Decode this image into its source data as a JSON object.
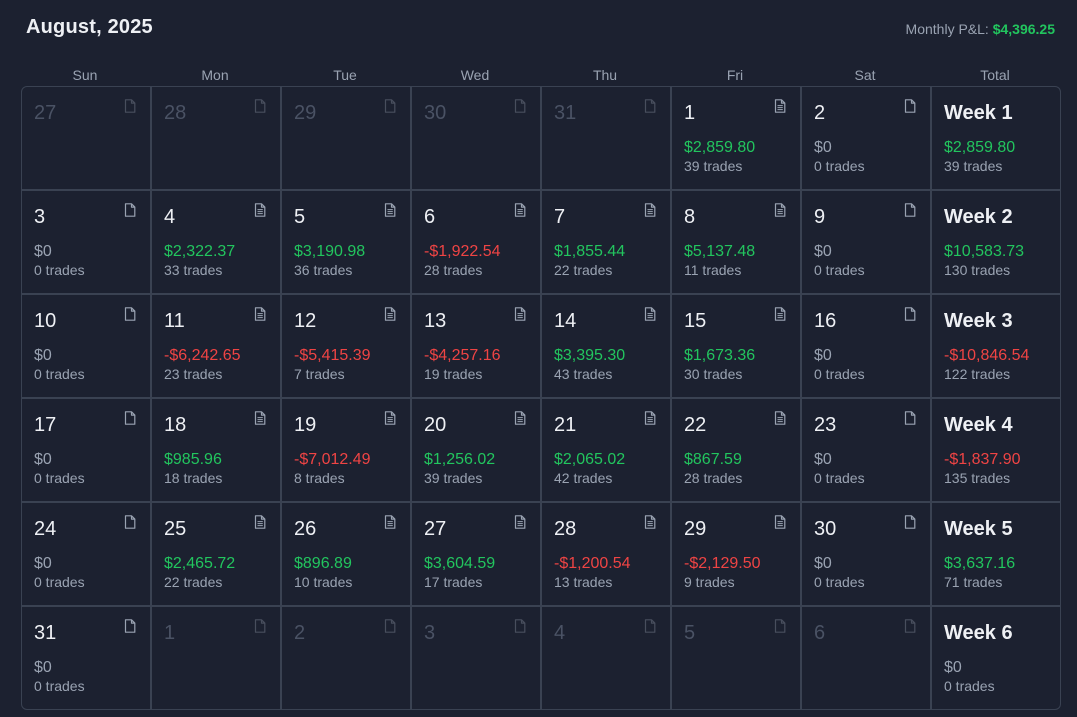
{
  "header": {
    "title": "August, 2025",
    "monthly_label": "Monthly P&L:",
    "monthly_value": "$4,396.25"
  },
  "days_of_week": [
    "Sun",
    "Mon",
    "Tue",
    "Wed",
    "Thu",
    "Fri",
    "Sat",
    "Total"
  ],
  "colors": {
    "positive": "#22c55e",
    "negative": "#ef4444",
    "neutral": "#9aa3b2"
  },
  "weeks": [
    {
      "days": [
        {
          "day": "27",
          "current": false
        },
        {
          "day": "28",
          "current": false
        },
        {
          "day": "29",
          "current": false
        },
        {
          "day": "30",
          "current": false
        },
        {
          "day": "31",
          "current": false
        },
        {
          "day": "1",
          "current": true,
          "pnl": "$2,859.80",
          "trades": "39 trades",
          "sign": "pos",
          "has_notes": true
        },
        {
          "day": "2",
          "current": true,
          "pnl": "$0",
          "trades": "0 trades",
          "sign": "zero",
          "has_notes": false
        }
      ],
      "total": {
        "label": "Week 1",
        "pnl": "$2,859.80",
        "trades": "39 trades",
        "sign": "pos"
      }
    },
    {
      "days": [
        {
          "day": "3",
          "current": true,
          "pnl": "$0",
          "trades": "0 trades",
          "sign": "zero",
          "has_notes": false
        },
        {
          "day": "4",
          "current": true,
          "pnl": "$2,322.37",
          "trades": "33 trades",
          "sign": "pos",
          "has_notes": true
        },
        {
          "day": "5",
          "current": true,
          "pnl": "$3,190.98",
          "trades": "36 trades",
          "sign": "pos",
          "has_notes": true
        },
        {
          "day": "6",
          "current": true,
          "pnl": "-$1,922.54",
          "trades": "28 trades",
          "sign": "neg",
          "has_notes": true
        },
        {
          "day": "7",
          "current": true,
          "pnl": "$1,855.44",
          "trades": "22 trades",
          "sign": "pos",
          "has_notes": true
        },
        {
          "day": "8",
          "current": true,
          "pnl": "$5,137.48",
          "trades": "11 trades",
          "sign": "pos",
          "has_notes": true
        },
        {
          "day": "9",
          "current": true,
          "pnl": "$0",
          "trades": "0 trades",
          "sign": "zero",
          "has_notes": false
        }
      ],
      "total": {
        "label": "Week 2",
        "pnl": "$10,583.73",
        "trades": "130 trades",
        "sign": "pos"
      }
    },
    {
      "days": [
        {
          "day": "10",
          "current": true,
          "pnl": "$0",
          "trades": "0 trades",
          "sign": "zero",
          "has_notes": false
        },
        {
          "day": "11",
          "current": true,
          "pnl": "-$6,242.65",
          "trades": "23 trades",
          "sign": "neg",
          "has_notes": true
        },
        {
          "day": "12",
          "current": true,
          "pnl": "-$5,415.39",
          "trades": "7 trades",
          "sign": "neg",
          "has_notes": true
        },
        {
          "day": "13",
          "current": true,
          "pnl": "-$4,257.16",
          "trades": "19 trades",
          "sign": "neg",
          "has_notes": true
        },
        {
          "day": "14",
          "current": true,
          "pnl": "$3,395.30",
          "trades": "43 trades",
          "sign": "pos",
          "has_notes": true
        },
        {
          "day": "15",
          "current": true,
          "pnl": "$1,673.36",
          "trades": "30 trades",
          "sign": "pos",
          "has_notes": true
        },
        {
          "day": "16",
          "current": true,
          "pnl": "$0",
          "trades": "0 trades",
          "sign": "zero",
          "has_notes": false
        }
      ],
      "total": {
        "label": "Week 3",
        "pnl": "-$10,846.54",
        "trades": "122 trades",
        "sign": "neg"
      }
    },
    {
      "days": [
        {
          "day": "17",
          "current": true,
          "pnl": "$0",
          "trades": "0 trades",
          "sign": "zero",
          "has_notes": false
        },
        {
          "day": "18",
          "current": true,
          "pnl": "$985.96",
          "trades": "18 trades",
          "sign": "pos",
          "has_notes": true
        },
        {
          "day": "19",
          "current": true,
          "pnl": "-$7,012.49",
          "trades": "8 trades",
          "sign": "neg",
          "has_notes": true
        },
        {
          "day": "20",
          "current": true,
          "pnl": "$1,256.02",
          "trades": "39 trades",
          "sign": "pos",
          "has_notes": true
        },
        {
          "day": "21",
          "current": true,
          "pnl": "$2,065.02",
          "trades": "42 trades",
          "sign": "pos",
          "has_notes": true
        },
        {
          "day": "22",
          "current": true,
          "pnl": "$867.59",
          "trades": "28 trades",
          "sign": "pos",
          "has_notes": true
        },
        {
          "day": "23",
          "current": true,
          "pnl": "$0",
          "trades": "0 trades",
          "sign": "zero",
          "has_notes": false
        }
      ],
      "total": {
        "label": "Week 4",
        "pnl": "-$1,837.90",
        "trades": "135 trades",
        "sign": "neg"
      }
    },
    {
      "days": [
        {
          "day": "24",
          "current": true,
          "pnl": "$0",
          "trades": "0 trades",
          "sign": "zero",
          "has_notes": false
        },
        {
          "day": "25",
          "current": true,
          "pnl": "$2,465.72",
          "trades": "22 trades",
          "sign": "pos",
          "has_notes": true
        },
        {
          "day": "26",
          "current": true,
          "pnl": "$896.89",
          "trades": "10 trades",
          "sign": "pos",
          "has_notes": true
        },
        {
          "day": "27",
          "current": true,
          "pnl": "$3,604.59",
          "trades": "17 trades",
          "sign": "pos",
          "has_notes": true
        },
        {
          "day": "28",
          "current": true,
          "pnl": "-$1,200.54",
          "trades": "13 trades",
          "sign": "neg",
          "has_notes": true
        },
        {
          "day": "29",
          "current": true,
          "pnl": "-$2,129.50",
          "trades": "9 trades",
          "sign": "neg",
          "has_notes": true
        },
        {
          "day": "30",
          "current": true,
          "pnl": "$0",
          "trades": "0 trades",
          "sign": "zero",
          "has_notes": false
        }
      ],
      "total": {
        "label": "Week 5",
        "pnl": "$3,637.16",
        "trades": "71 trades",
        "sign": "pos"
      }
    },
    {
      "days": [
        {
          "day": "31",
          "current": true,
          "pnl": "$0",
          "trades": "0 trades",
          "sign": "zero",
          "has_notes": false
        },
        {
          "day": "1",
          "current": false
        },
        {
          "day": "2",
          "current": false
        },
        {
          "day": "3",
          "current": false
        },
        {
          "day": "4",
          "current": false
        },
        {
          "day": "5",
          "current": false
        },
        {
          "day": "6",
          "current": false
        }
      ],
      "total": {
        "label": "Week 6",
        "pnl": "$0",
        "trades": "0 trades",
        "sign": "zero"
      }
    }
  ]
}
